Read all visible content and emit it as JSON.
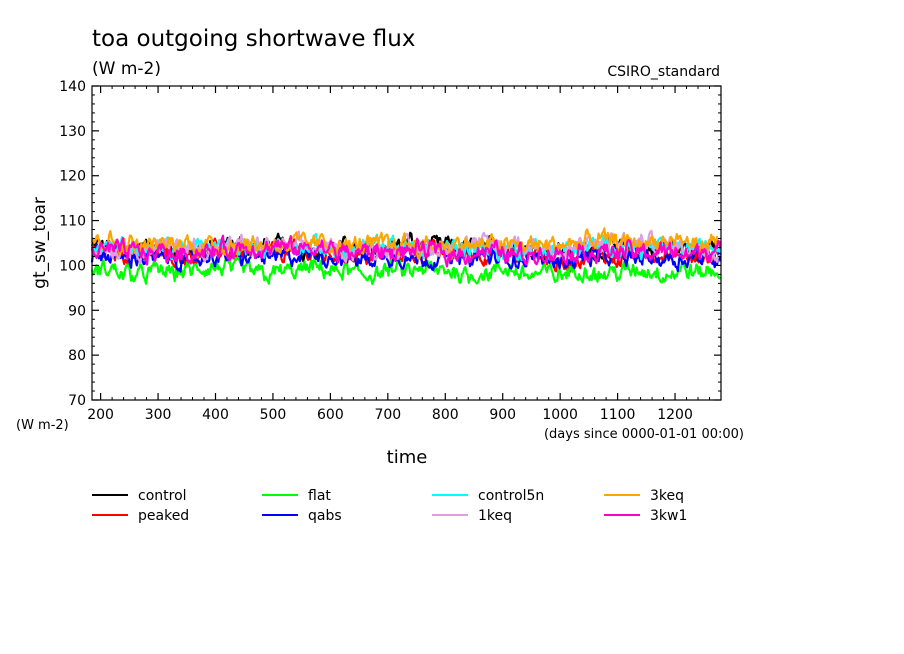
{
  "chart_data": {
    "type": "line",
    "title": "toa outgoing shortwave flux",
    "subtitle": "(W m-2)",
    "source_label": "CSIRO_standard",
    "xlabel": "time",
    "x_units_label": "(days since 0000-01-01 00:00)",
    "ylabel": "gt_sw_toar",
    "y_units_label": "(W m-2)",
    "xlim": [
      185,
      1280
    ],
    "ylim": [
      70,
      140
    ],
    "x_ticks": [
      200,
      300,
      400,
      500,
      600,
      700,
      800,
      900,
      1000,
      1100,
      1200
    ],
    "x_tick_labels": [
      "200",
      "300",
      "400",
      "500",
      "600",
      "700",
      "800",
      "900",
      "1000",
      "1100",
      "1200"
    ],
    "y_ticks": [
      70,
      80,
      90,
      100,
      110,
      120,
      130,
      140
    ],
    "y_tick_labels": [
      "70",
      "80",
      "90",
      "100",
      "110",
      "120",
      "130",
      "140"
    ],
    "grid": false,
    "legend_position": "bottom",
    "series": [
      {
        "name": "control",
        "color": "#000000",
        "x": [
          185,
          250,
          330,
          420,
          500,
          580,
          640,
          700,
          730,
          780,
          850,
          920,
          980,
          1050,
          1120,
          1180,
          1240,
          1280
        ],
        "y": [
          104,
          104,
          103.5,
          104,
          104,
          104,
          103.5,
          104.5,
          105,
          104,
          104,
          104,
          103.5,
          103.5,
          104,
          104,
          104,
          103.5
        ]
      },
      {
        "name": "peaked",
        "color": "#ff0000",
        "x": [
          185,
          250,
          330,
          420,
          500,
          580,
          640,
          700,
          780,
          850,
          920,
          980,
          1000,
          1050,
          1120,
          1180,
          1240,
          1280
        ],
        "y": [
          103,
          103,
          102.5,
          103,
          103,
          103,
          102.5,
          103,
          102.5,
          103,
          102.5,
          102,
          100,
          102,
          102.5,
          102.5,
          102,
          102
        ]
      },
      {
        "name": "flat",
        "color": "#00ff00",
        "x": [
          185,
          250,
          330,
          420,
          500,
          580,
          640,
          700,
          780,
          850,
          920,
          980,
          1050,
          1120,
          1180,
          1240,
          1280
        ],
        "y": [
          99,
          98.5,
          98.5,
          99,
          98.5,
          99,
          98,
          98.5,
          98.5,
          98.5,
          98.5,
          98,
          98.5,
          98.5,
          98.5,
          98.5,
          98.5
        ]
      },
      {
        "name": "qabs",
        "color": "#0000ff",
        "x": [
          185,
          250,
          330,
          420,
          500,
          580,
          640,
          700,
          780,
          850,
          920,
          980,
          1050,
          1120,
          1180,
          1240,
          1280
        ],
        "y": [
          102,
          102,
          101.5,
          102,
          102,
          102,
          101.5,
          102,
          102,
          102,
          101.5,
          101.5,
          102,
          102,
          102,
          102,
          101.5
        ]
      },
      {
        "name": "control5n",
        "color": "#00ffff",
        "x": [
          185,
          250,
          330,
          420,
          500,
          580,
          640,
          700,
          780,
          850,
          920,
          980,
          1050,
          1120,
          1180,
          1240,
          1280
        ],
        "y": [
          105,
          104,
          103.5,
          104,
          104,
          104,
          103.5,
          104,
          104,
          104,
          103.5,
          103.5,
          104,
          104,
          104,
          104,
          104
        ]
      },
      {
        "name": "1keq",
        "color": "#dda0dd",
        "x": [
          185,
          250,
          330,
          420,
          500,
          580,
          640,
          700,
          780,
          850,
          920,
          980,
          1050,
          1120,
          1180,
          1240,
          1280
        ],
        "y": [
          104,
          104,
          104,
          104,
          104,
          104,
          103.5,
          104,
          104,
          104,
          104.5,
          104,
          104.5,
          105,
          104.5,
          104.5,
          104
        ]
      },
      {
        "name": "3keq",
        "color": "#ffa500",
        "x": [
          185,
          250,
          330,
          420,
          500,
          580,
          640,
          700,
          780,
          850,
          920,
          980,
          1050,
          1120,
          1180,
          1240,
          1280
        ],
        "y": [
          106,
          105,
          104.5,
          105,
          105,
          105,
          104.5,
          105,
          105,
          104.5,
          104.5,
          104.5,
          105,
          105,
          105,
          104.5,
          104.5
        ]
      },
      {
        "name": "3kw1",
        "color": "#ff00cc",
        "x": [
          185,
          250,
          330,
          420,
          500,
          580,
          640,
          700,
          780,
          850,
          920,
          980,
          1050,
          1120,
          1180,
          1240,
          1280
        ],
        "y": [
          103.5,
          103,
          103,
          103.5,
          103.5,
          103.5,
          103,
          103,
          103,
          103,
          103,
          102.5,
          103,
          103,
          103,
          103,
          103
        ]
      }
    ]
  }
}
